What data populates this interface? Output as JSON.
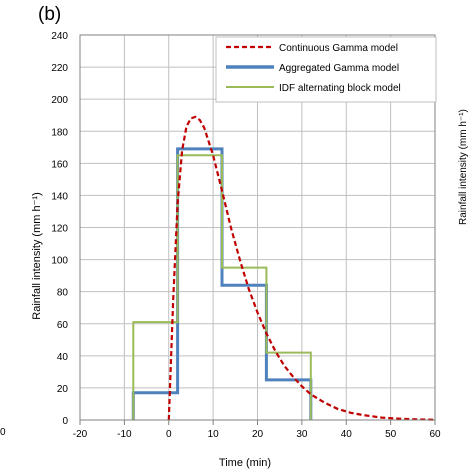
{
  "panel_label": "(b)",
  "left_edge_tick": "0",
  "right_edge_label": "Rainfall intensity (mm h⁻¹)",
  "colors": {
    "continuous": "#c00000",
    "aggregated": "#4f81bd",
    "idf": "#9bbb59",
    "grid": "#bfbfbf",
    "axis": "#808080"
  },
  "chart_data": {
    "type": "line",
    "title": "",
    "xlabel": "Time (min)",
    "ylabel": "Rainfall intensity (mm h⁻¹)",
    "xlim": [
      -20,
      60
    ],
    "ylim": [
      0,
      240
    ],
    "xticks": [
      "-20",
      "-10",
      "0",
      "10",
      "20",
      "30",
      "40",
      "50",
      "60"
    ],
    "yticks": [
      "0",
      "20",
      "40",
      "60",
      "80",
      "100",
      "120",
      "140",
      "160",
      "180",
      "200",
      "220",
      "240"
    ],
    "grid": true,
    "legend_position": "top-right",
    "series": [
      {
        "name": "Continuous Gamma model",
        "style": "dashed",
        "x": [
          0,
          1,
          2,
          3,
          4,
          5,
          6,
          7,
          8,
          10,
          12,
          14,
          16,
          18,
          20,
          22,
          24,
          26,
          28,
          30,
          32,
          35,
          38,
          41,
          44,
          48,
          52,
          56,
          60
        ],
        "y": [
          0,
          75,
          135,
          168,
          183,
          188,
          189,
          187,
          182,
          165,
          143,
          120,
          100,
          82,
          67,
          54,
          43,
          34,
          27,
          21,
          16,
          11,
          7,
          4.5,
          3,
          1.5,
          0.8,
          0.4,
          0.2
        ]
      },
      {
        "name": "Aggregated Gamma model",
        "style": "step",
        "x": [
          -8,
          -8,
          2,
          2,
          12,
          12,
          22,
          22,
          32,
          32
        ],
        "y": [
          0,
          17,
          17,
          169,
          169,
          84,
          84,
          25,
          25,
          0
        ]
      },
      {
        "name": "IDF alternating block model",
        "style": "step",
        "x": [
          -8,
          -8,
          2,
          2,
          12,
          12,
          22,
          22,
          32,
          32
        ],
        "y": [
          0,
          61,
          61,
          165,
          165,
          95,
          95,
          42,
          42,
          0
        ]
      }
    ]
  }
}
